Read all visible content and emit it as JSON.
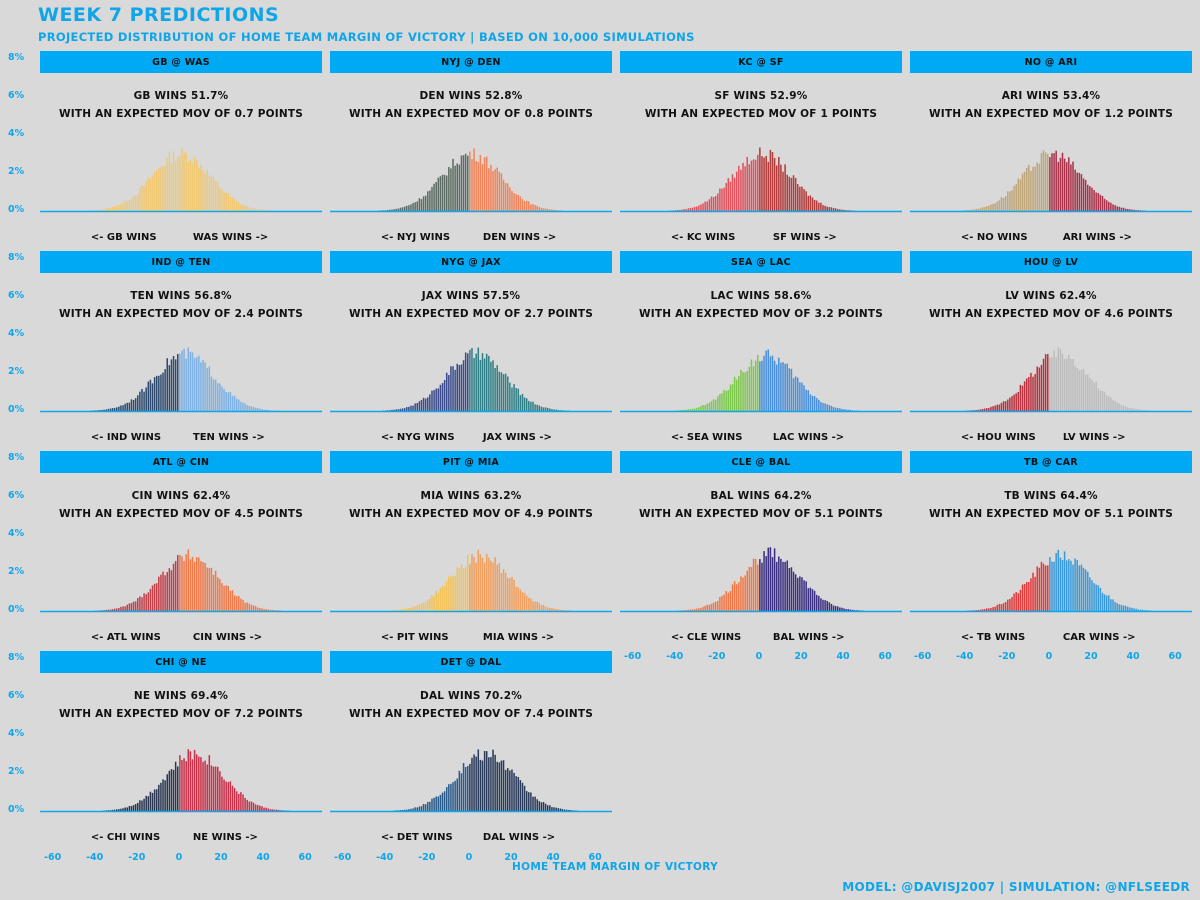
{
  "title": "WEEK 7 PREDICTIONS",
  "subtitle": "PROJECTED DISTRIBUTION OF HOME TEAM MARGIN OF VICTORY | BASED ON 10,000 SIMULATIONS",
  "footer": "MODEL: @DAVISJ2007 | SIMULATION: @NFLSEEDR",
  "chart_data": {
    "type": "bar",
    "title": "WEEK 7 PREDICTIONS",
    "xlabel": "HOME TEAM MARGIN OF VICTORY",
    "ylabel": "",
    "xlim": [
      -66,
      68
    ],
    "ylim": [
      0,
      8
    ],
    "x_ticks": [
      "-60",
      "-40",
      "-20",
      "0",
      "20",
      "40",
      "60"
    ],
    "y_ticks": [
      "0%",
      "2%",
      "4%",
      "6%",
      "8%"
    ],
    "stat_label": "WITH AN EXPECTED MOV OF",
    "points_unit": "POINTS",
    "wins_word": "WINS",
    "games": [
      {
        "header": "GB @ WAS",
        "away": "GB",
        "home": "WAS",
        "winner": "GB",
        "win_pct": "51.7%",
        "mov": 0.7,
        "peak": 3.0,
        "sd": 14,
        "away_color": "#f1c873",
        "home_color": "#f1c873"
      },
      {
        "header": "NYJ @ DEN",
        "away": "NYJ",
        "home": "DEN",
        "winner": "DEN",
        "win_pct": "52.8%",
        "mov": 0.8,
        "peak": 3.0,
        "sd": 14,
        "away_color": "#5c6b63",
        "home_color": "#f0845a"
      },
      {
        "header": "KC @ SF",
        "away": "KC",
        "home": "SF",
        "winner": "SF",
        "win_pct": "52.9%",
        "mov": 1.0,
        "peak": 3.0,
        "sd": 14,
        "away_color": "#e0515c",
        "home_color": "#b23b3b"
      },
      {
        "header": "NO @ ARI",
        "away": "NO",
        "home": "ARI",
        "winner": "ARI",
        "win_pct": "53.4%",
        "mov": 1.2,
        "peak": 3.0,
        "sd": 14,
        "away_color": "#bfa67a",
        "home_color": "#a8324a"
      },
      {
        "header": "IND @ TEN",
        "away": "IND",
        "home": "TEN",
        "winner": "TEN",
        "win_pct": "56.8%",
        "mov": 2.4,
        "peak": 3.0,
        "sd": 14,
        "away_color": "#2e4a6e",
        "home_color": "#7fb2e3"
      },
      {
        "header": "NYG @ JAX",
        "away": "NYG",
        "home": "JAX",
        "winner": "JAX",
        "win_pct": "57.5%",
        "mov": 2.7,
        "peak": 3.0,
        "sd": 14,
        "away_color": "#3a4a8a",
        "home_color": "#2f7f86"
      },
      {
        "header": "SEA @ LAC",
        "away": "SEA",
        "home": "LAC",
        "winner": "LAC",
        "win_pct": "58.6%",
        "mov": 3.2,
        "peak": 2.9,
        "sd": 14,
        "away_color": "#7ec850",
        "home_color": "#4a90d9"
      },
      {
        "header": "HOU @ LV",
        "away": "HOU",
        "home": "LV",
        "winner": "LV",
        "win_pct": "62.4%",
        "mov": 4.6,
        "peak": 3.0,
        "sd": 14,
        "away_color": "#b8313f",
        "home_color": "#bdbdbd"
      },
      {
        "header": "ATL @ CIN",
        "away": "ATL",
        "home": "CIN",
        "winner": "CIN",
        "win_pct": "62.4%",
        "mov": 4.5,
        "peak": 2.9,
        "sd": 14,
        "away_color": "#c0404a",
        "home_color": "#f07a4a"
      },
      {
        "header": "PIT @ MIA",
        "away": "PIT",
        "home": "MIA",
        "winner": "MIA",
        "win_pct": "63.2%",
        "mov": 4.9,
        "peak": 2.9,
        "sd": 14,
        "away_color": "#f2c35a",
        "home_color": "#f0a060"
      },
      {
        "header": "CLE @ BAL",
        "away": "CLE",
        "home": "BAL",
        "winner": "BAL",
        "win_pct": "64.2%",
        "mov": 5.1,
        "peak": 3.0,
        "sd": 14,
        "away_color": "#f07848",
        "home_color": "#3a2f80"
      },
      {
        "header": "TB @ CAR",
        "away": "TB",
        "home": "CAR",
        "winner": "TB",
        "win_pct": "64.4%",
        "mov": 5.1,
        "peak": 2.9,
        "sd": 14,
        "away_color": "#e03a3a",
        "home_color": "#3a9ad9"
      },
      {
        "header": "CHI @ NE",
        "away": "CHI",
        "home": "NE",
        "winner": "NE",
        "win_pct": "69.4%",
        "mov": 7.2,
        "peak": 3.0,
        "sd": 14,
        "away_color": "#2a3550",
        "home_color": "#c8314a"
      },
      {
        "header": "DET @ DAL",
        "away": "DET",
        "home": "DAL",
        "winner": "DAL",
        "win_pct": "70.2%",
        "mov": 7.4,
        "peak": 3.0,
        "sd": 14,
        "away_color": "#2a5a8a",
        "home_color": "#2a3a5a"
      }
    ]
  }
}
